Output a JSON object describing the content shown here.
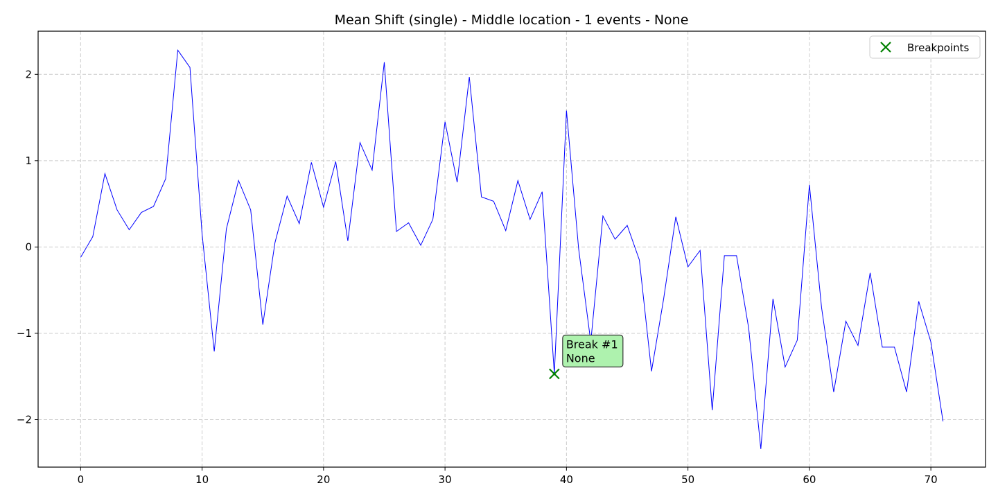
{
  "chart_data": {
    "type": "line",
    "title": "Mean Shift (single) - Middle location - 1 events - None",
    "xlabel": "",
    "ylabel": "",
    "xlim": [
      -3.5,
      74.5
    ],
    "ylim": [
      -2.55,
      2.5
    ],
    "x_ticks": [
      0,
      10,
      20,
      30,
      40,
      50,
      60,
      70
    ],
    "y_ticks": [
      2,
      1,
      0,
      -1,
      -2
    ],
    "y_tick_labels": [
      "2",
      "1",
      "0",
      "−1",
      "−2"
    ],
    "grid": true,
    "legend_position": "top-right",
    "series": [
      {
        "color": "#0000ff",
        "x": [
          0,
          1,
          2,
          3,
          4,
          5,
          6,
          7,
          8,
          9,
          10,
          11,
          12,
          13,
          14,
          15,
          16,
          17,
          18,
          19,
          20,
          21,
          22,
          23,
          24,
          25,
          26,
          27,
          28,
          29,
          30,
          31,
          32,
          33,
          34,
          35,
          36,
          37,
          38,
          39,
          40,
          41,
          42,
          43,
          44,
          45,
          46,
          47,
          48,
          49,
          50,
          51,
          52,
          53,
          54,
          55,
          56,
          57,
          58,
          59,
          60,
          61,
          62,
          63,
          64,
          65,
          66,
          67,
          68,
          69,
          70,
          71
        ],
        "values": [
          -0.12,
          0.12,
          0.85,
          0.43,
          0.2,
          0.4,
          0.47,
          0.79,
          2.28,
          2.08,
          0.15,
          -1.21,
          0.21,
          0.77,
          0.43,
          -0.9,
          0.05,
          0.59,
          0.27,
          0.98,
          0.46,
          0.99,
          0.07,
          1.21,
          0.89,
          2.14,
          0.18,
          0.28,
          0.02,
          0.32,
          1.45,
          0.75,
          1.97,
          0.58,
          0.53,
          0.19,
          0.77,
          0.32,
          0.64,
          -1.47,
          1.58,
          -0.02,
          -1.1,
          0.36,
          0.09,
          0.25,
          -0.15,
          -1.44,
          -0.6,
          0.35,
          -0.23,
          -0.04,
          -1.89,
          -0.1,
          -0.1,
          -0.94,
          -2.34,
          -0.6,
          -1.39,
          -1.08,
          0.72,
          -0.7,
          -1.68,
          -0.86,
          -1.14,
          -0.3,
          -1.16,
          -1.16,
          -1.68,
          -0.63,
          -1.1,
          -2.02
        ]
      }
    ],
    "breakpoints": {
      "name": "Breakpoints",
      "color": "#008000",
      "points": [
        {
          "x": 39,
          "y": -1.47,
          "label_line1": "Break #1",
          "label_line2": "None"
        }
      ]
    }
  }
}
